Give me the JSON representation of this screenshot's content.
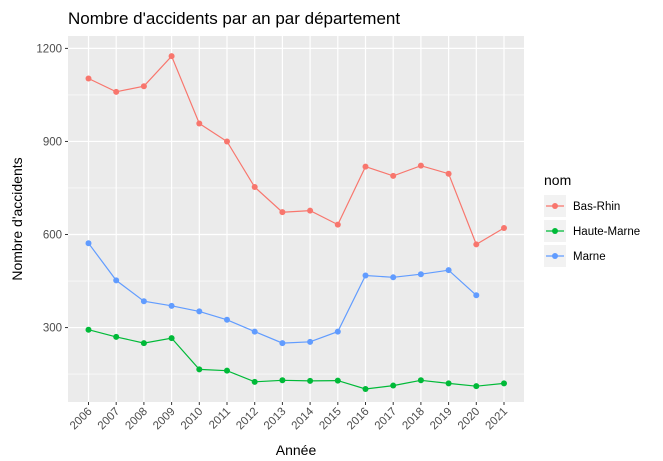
{
  "chart_data": {
    "type": "line",
    "title": "Nombre d'accidents par an par département",
    "xlabel": "Année",
    "ylabel": "Nombre d'accidents",
    "x": [
      2006,
      2007,
      2008,
      2009,
      2010,
      2011,
      2012,
      2013,
      2014,
      2015,
      2016,
      2017,
      2018,
      2019,
      2020,
      2021
    ],
    "x_tick_labels": [
      "2006",
      "2007",
      "2008",
      "2009",
      "2010",
      "2011",
      "2012",
      "2013",
      "2014",
      "2015",
      "2016",
      "2017",
      "2018",
      "2019",
      "2020",
      "2021"
    ],
    "ylim": [
      60,
      1240
    ],
    "y_ticks": [
      300,
      600,
      900,
      1200
    ],
    "y_tick_labels": [
      "300",
      "600",
      "900",
      "1200"
    ],
    "grid": true,
    "legend": {
      "title": "nom",
      "position": "right"
    },
    "series": [
      {
        "name": "Bas-Rhin",
        "color": "#F8766D",
        "values": [
          1103,
          1060,
          1078,
          1175,
          958,
          900,
          753,
          672,
          677,
          632,
          819,
          789,
          822,
          796,
          568,
          621
        ]
      },
      {
        "name": "Haute-Marne",
        "color": "#00BA38",
        "values": [
          293,
          270,
          250,
          266,
          165,
          161,
          125,
          130,
          128,
          129,
          102,
          113,
          130,
          120,
          111,
          120
        ]
      },
      {
        "name": "Marne",
        "color": "#619CFF",
        "values": [
          572,
          452,
          385,
          370,
          352,
          325,
          287,
          250,
          254,
          287,
          468,
          462,
          472,
          485,
          404,
          null
        ]
      }
    ]
  }
}
